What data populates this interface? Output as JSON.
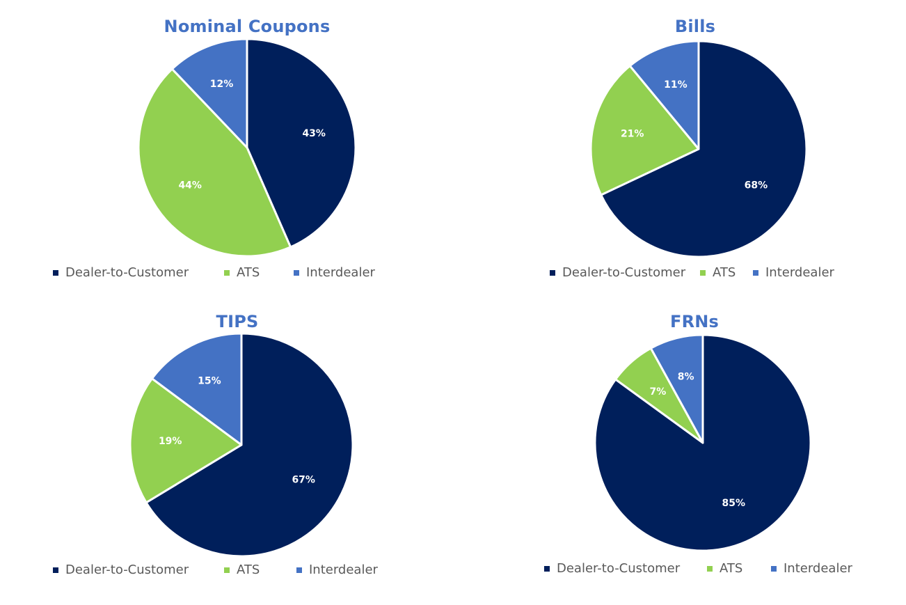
{
  "colors": {
    "Dealer-to-Customer": "#001f5b",
    "ATS": "#92d050",
    "Interdealer": "#4472c4",
    "title": "#4472c4",
    "legend_text": "#595959"
  },
  "chart_data": [
    {
      "type": "pie",
      "title": "Nominal Coupons",
      "categories": [
        "Dealer-to-Customer",
        "ATS",
        "Interdealer"
      ],
      "values": [
        43,
        44,
        12
      ],
      "labels": [
        "43%",
        "44%",
        "12%"
      ],
      "legend": "bottom"
    },
    {
      "type": "pie",
      "title": "Bills",
      "categories": [
        "Dealer-to-Customer",
        "ATS",
        "Interdealer"
      ],
      "values": [
        68,
        21,
        11
      ],
      "labels": [
        "68%",
        "21%",
        "11%"
      ],
      "legend": "bottom"
    },
    {
      "type": "pie",
      "title": "TIPS",
      "categories": [
        "Dealer-to-Customer",
        "ATS",
        "Interdealer"
      ],
      "values": [
        67,
        19,
        15
      ],
      "labels": [
        "67%",
        "19%",
        "15%"
      ],
      "legend": "bottom"
    },
    {
      "type": "pie",
      "title": "FRNs",
      "categories": [
        "Dealer-to-Customer",
        "ATS",
        "Interdealer"
      ],
      "values": [
        85,
        7,
        8
      ],
      "labels": [
        "85%",
        "7%",
        "8%"
      ],
      "legend": "bottom"
    }
  ]
}
